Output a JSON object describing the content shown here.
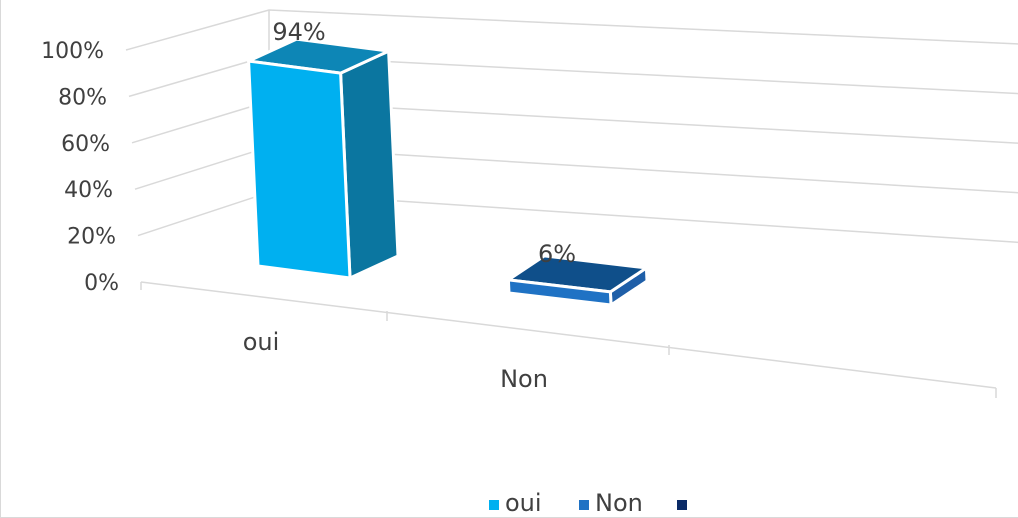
{
  "chart_data": {
    "type": "bar",
    "categories": [
      "oui",
      "Non"
    ],
    "values": [
      94,
      6
    ],
    "value_labels": [
      "94%",
      "6%"
    ],
    "yticks": [
      "0%",
      "20%",
      "40%",
      "60%",
      "80%",
      "100%"
    ],
    "ylim": [
      0,
      100
    ],
    "grid": true,
    "legend": {
      "position": "bottom",
      "entries": [
        "oui",
        "Non",
        ""
      ]
    },
    "colors": {
      "oui_front": "#00b0f0",
      "oui_side": "#0b76a0",
      "oui_top": "#0d86b6",
      "non_front": "#1f72c4",
      "non_side": "#1f5fa8",
      "non_top": "#0f4f8a",
      "legend_third": "#0a2a66",
      "grid": "#d9d9d9",
      "text": "#404040"
    }
  }
}
